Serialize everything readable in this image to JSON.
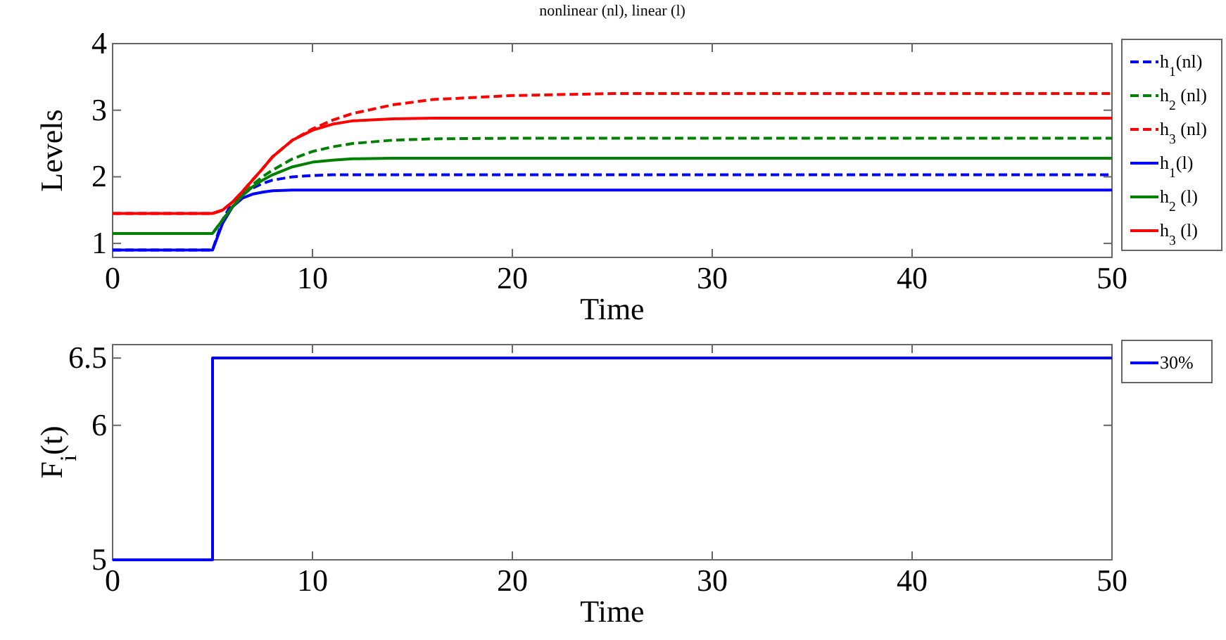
{
  "chart_data": [
    {
      "type": "line",
      "title": "nonlinear (nl), linear (l)",
      "xlabel": "Time",
      "ylabel": "Levels",
      "x": [
        0,
        5,
        5.5,
        6,
        6.5,
        7,
        7.5,
        8,
        9,
        10,
        11,
        12,
        14,
        16,
        20,
        25,
        50
      ],
      "xlim": [
        0,
        50
      ],
      "xticks": [
        0,
        10,
        20,
        30,
        40,
        50
      ],
      "ylim": [
        0.79,
        4
      ],
      "yticks": [
        1,
        2,
        3,
        4
      ],
      "grid": false,
      "legend": "right",
      "series": [
        {
          "name": "h$_{1}$(nl)",
          "color": "#0000ff",
          "line_style": "dashed",
          "values": [
            0.9,
            0.9,
            1.35,
            1.62,
            1.75,
            1.83,
            1.9,
            1.95,
            2.0,
            2.02,
            2.03,
            2.03,
            2.03,
            2.03,
            2.03,
            2.03,
            2.03
          ]
        },
        {
          "name": "h$_{2}$ (nl)",
          "color": "#008000",
          "line_style": "dashed",
          "values": [
            1.15,
            1.15,
            1.35,
            1.55,
            1.73,
            1.88,
            2.0,
            2.1,
            2.27,
            2.38,
            2.45,
            2.5,
            2.55,
            2.57,
            2.58,
            2.58,
            2.58
          ]
        },
        {
          "name": "h$_{3}$ (nl)",
          "color": "#ff0000",
          "line_style": "dashed",
          "values": [
            1.45,
            1.45,
            1.5,
            1.62,
            1.78,
            1.95,
            2.12,
            2.3,
            2.55,
            2.72,
            2.85,
            2.95,
            3.08,
            3.16,
            3.22,
            3.25,
            3.25
          ]
        },
        {
          "name": "h$_{1}$(l)",
          "color": "#0000ff",
          "line_style": "solid",
          "values": [
            0.9,
            0.9,
            1.3,
            1.55,
            1.68,
            1.74,
            1.77,
            1.79,
            1.8,
            1.8,
            1.8,
            1.8,
            1.8,
            1.8,
            1.8,
            1.8,
            1.8
          ]
        },
        {
          "name": "h$_{2}$ (l)",
          "color": "#008000",
          "line_style": "solid",
          "values": [
            1.15,
            1.15,
            1.35,
            1.55,
            1.72,
            1.85,
            1.95,
            2.03,
            2.15,
            2.22,
            2.25,
            2.27,
            2.28,
            2.28,
            2.28,
            2.28,
            2.28
          ]
        },
        {
          "name": "h$_{3}$ (l)",
          "color": "#ff0000",
          "line_style": "solid",
          "values": [
            1.45,
            1.45,
            1.5,
            1.62,
            1.78,
            1.95,
            2.12,
            2.3,
            2.55,
            2.7,
            2.79,
            2.84,
            2.87,
            2.88,
            2.88,
            2.88,
            2.88
          ]
        }
      ]
    },
    {
      "type": "step",
      "xlabel": "Time",
      "ylabel": "F$_{i}$(t)",
      "x": [
        0,
        5,
        50
      ],
      "xlim": [
        0,
        50
      ],
      "xticks": [
        0,
        10,
        20,
        30,
        40,
        50
      ],
      "ylim": [
        5,
        6.6
      ],
      "yticks": [
        5,
        6,
        6.5
      ],
      "grid": false,
      "legend": "right",
      "series": [
        {
          "name": "30%",
          "color": "#0000ff",
          "line_style": "solid",
          "values": [
            5,
            6.5,
            6.5
          ]
        }
      ]
    }
  ]
}
